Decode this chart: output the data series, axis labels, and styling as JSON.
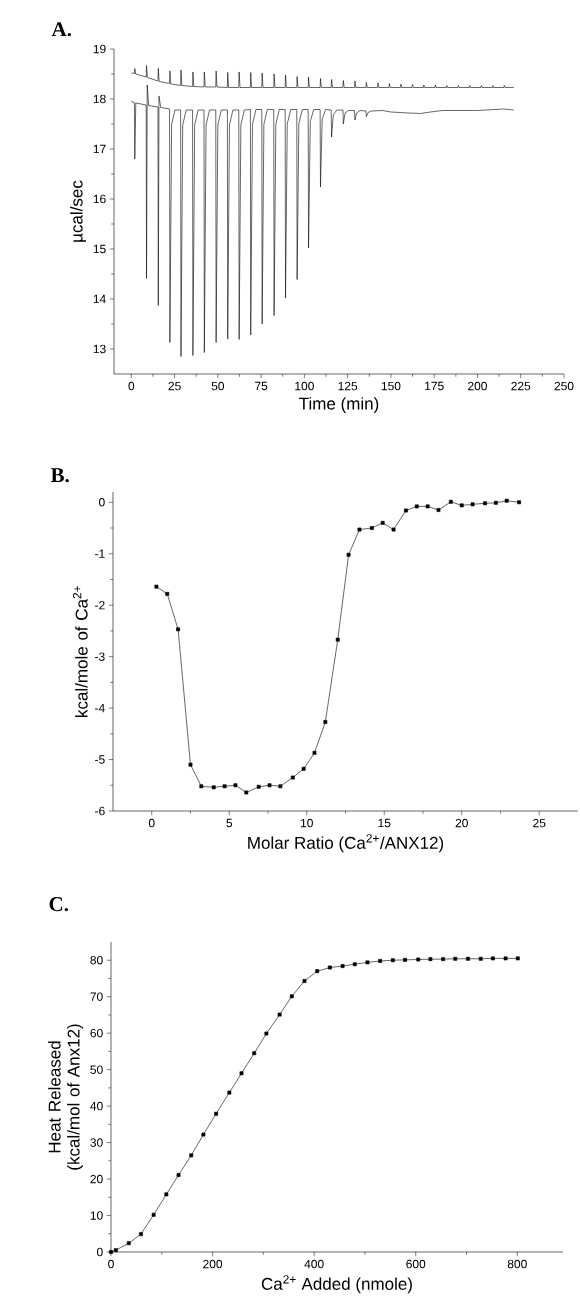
{
  "chart_data": [
    {
      "type": "line",
      "title": "A.",
      "xlabel": "Time (min)",
      "ylabel": "µcal/sec",
      "xlim": [
        -10,
        250
      ],
      "ylim": [
        12.5,
        19
      ],
      "xticks": [
        0,
        25,
        50,
        75,
        100,
        125,
        150,
        175,
        200,
        225,
        250
      ],
      "yticks": [
        13,
        14,
        15,
        16,
        17,
        18,
        19
      ],
      "marker": "none",
      "series": [
        {
          "color": "#000000",
          "x": [
            0,
            1.8,
            2,
            2.5,
            8.6,
            8.8,
            9.3,
            15.4,
            15.6,
            16.1,
            22.1,
            22.3,
            22.8,
            28.5,
            28.7,
            29.2,
            35.4,
            35.6,
            36.1,
            42,
            42.2,
            42.7,
            48.8,
            49,
            49.5,
            55.5,
            55.7,
            56.2,
            62.1,
            62.3,
            62.8,
            68.8,
            69,
            69.5,
            75.4,
            75.6,
            76.1,
            82.3,
            82.5,
            83,
            88.9,
            89.1,
            89.6,
            95.6,
            95.8,
            96.3,
            102.2,
            102.4,
            102.9,
            109.1,
            109.3,
            109.8,
            115.5,
            115.7,
            116.2,
            122.3,
            122.5,
            123,
            129,
            129.2,
            129.7,
            135.6,
            135.8,
            136.3,
            142.3,
            142.5,
            143,
            148.9,
            149.1,
            149.6,
            155.6,
            155.8,
            156.3,
            162.2,
            162.4,
            162.9,
            168.8,
            169,
            169.5,
            175.5,
            175.7,
            176.2,
            182.1,
            182.3,
            182.8,
            188.8,
            189,
            189.5,
            195.4,
            195.6,
            196.1,
            202,
            202.2,
            202.7,
            208.7,
            208.9,
            209.4,
            215.3,
            215.5,
            216,
            221
          ],
          "values": [
            18.52,
            18.51,
            18.61,
            18.5,
            18.44,
            18.67,
            18.43,
            18.36,
            18.61,
            18.35,
            18.31,
            18.56,
            18.3,
            18.27,
            18.58,
            18.27,
            18.25,
            18.54,
            18.25,
            18.24,
            18.54,
            18.24,
            18.24,
            18.56,
            18.24,
            18.23,
            18.53,
            18.23,
            18.23,
            18.54,
            18.23,
            18.23,
            18.53,
            18.23,
            18.23,
            18.52,
            18.23,
            18.23,
            18.5,
            18.23,
            18.23,
            18.48,
            18.23,
            18.23,
            18.45,
            18.23,
            18.23,
            18.44,
            18.23,
            18.23,
            18.41,
            18.23,
            18.23,
            18.39,
            18.23,
            18.23,
            18.37,
            18.23,
            18.23,
            18.36,
            18.23,
            18.23,
            18.33,
            18.23,
            18.23,
            18.32,
            18.23,
            18.23,
            18.31,
            18.23,
            18.23,
            18.3,
            18.23,
            18.23,
            18.29,
            18.23,
            18.23,
            18.28,
            18.23,
            18.23,
            18.28,
            18.23,
            18.23,
            18.27,
            18.23,
            18.23,
            18.27,
            18.23,
            18.23,
            18.27,
            18.23,
            18.23,
            18.27,
            18.23,
            18.23,
            18.27,
            18.23,
            18.23,
            18.27,
            18.23,
            18.23
          ]
        },
        {
          "color": "#000000",
          "x": [
            0,
            1.8,
            2,
            2.6,
            8.6,
            8.8,
            9.2,
            10,
            15.4,
            15.6,
            16,
            17,
            22.1,
            22.3,
            23.3,
            25.3,
            28.5,
            28.7,
            29.7,
            31.7,
            35.4,
            35.6,
            36.6,
            38.6,
            42,
            42.2,
            43.2,
            45.2,
            48.8,
            49,
            50,
            52,
            55.5,
            55.7,
            56.7,
            58.7,
            62.1,
            62.3,
            63.3,
            65.3,
            68.8,
            69,
            70,
            72,
            75.4,
            75.6,
            76.6,
            78.6,
            82.3,
            82.5,
            83.5,
            85.5,
            88.9,
            89.1,
            90.1,
            92.1,
            95.6,
            95.8,
            96.8,
            98.8,
            102.2,
            102.4,
            103.4,
            105.4,
            109.1,
            109.3,
            110.3,
            112.3,
            115.5,
            115.7,
            116.7,
            118.7,
            122.3,
            122.5,
            123.5,
            125.5,
            129,
            129.2,
            130.2,
            132.2,
            135.6,
            135.8,
            136.8,
            138.8,
            145,
            150,
            160,
            167,
            175,
            180,
            200,
            215,
            221
          ],
          "values": [
            17.95,
            17.93,
            16.8,
            17.92,
            17.88,
            14.41,
            18.28,
            17.87,
            17.84,
            13.87,
            18.06,
            17.83,
            17.8,
            13.13,
            17.5,
            17.78,
            17.78,
            12.85,
            17.48,
            17.78,
            17.78,
            12.87,
            17.48,
            17.78,
            17.78,
            12.93,
            17.48,
            17.78,
            17.78,
            13.13,
            17.48,
            17.78,
            17.78,
            13.2,
            17.48,
            17.78,
            17.78,
            13.19,
            17.48,
            17.78,
            17.79,
            13.28,
            17.49,
            17.79,
            17.79,
            13.5,
            17.49,
            17.79,
            17.79,
            13.67,
            17.49,
            17.79,
            17.79,
            14.02,
            17.5,
            17.79,
            17.79,
            14.39,
            17.5,
            17.79,
            17.79,
            15.02,
            17.55,
            17.79,
            17.79,
            16.24,
            17.6,
            17.79,
            17.78,
            17.24,
            17.68,
            17.78,
            17.78,
            17.5,
            17.72,
            17.77,
            17.77,
            17.58,
            17.72,
            17.77,
            17.76,
            17.65,
            17.73,
            17.76,
            17.77,
            17.74,
            17.72,
            17.71,
            17.75,
            17.77,
            17.77,
            17.8,
            17.78
          ]
        }
      ]
    },
    {
      "type": "line",
      "title": "B.",
      "xlabel": "Molar Ratio (Ca$^{2+}$/ANX12)",
      "ylabel": "kcal/mole of Ca$^{2+}$",
      "xlim": [
        -2.5,
        27.5
      ],
      "ylim": [
        -6,
        0.2
      ],
      "xticks": [
        0,
        5,
        10,
        15,
        20,
        25
      ],
      "yticks": [
        -6,
        -5,
        -4,
        -3,
        -2,
        -1,
        0
      ],
      "marker": "square",
      "series": [
        {
          "color": "#000000",
          "x": [
            0.3,
            1.0,
            1.7,
            2.5,
            3.2,
            4.0,
            4.7,
            5.4,
            6.1,
            6.9,
            7.6,
            8.3,
            9.1,
            9.8,
            10.5,
            11.2,
            12.0,
            12.7,
            13.4,
            14.2,
            14.9,
            15.6,
            16.4,
            17.1,
            17.8,
            18.5,
            19.3,
            20.0,
            20.7,
            21.5,
            22.2,
            22.9,
            23.7
          ],
          "values": [
            -1.64,
            -1.78,
            -2.47,
            -5.1,
            -5.52,
            -5.54,
            -5.52,
            -5.5,
            -5.64,
            -5.53,
            -5.5,
            -5.52,
            -5.35,
            -5.18,
            -4.87,
            -4.27,
            -2.67,
            -1.02,
            -0.53,
            -0.5,
            -0.4,
            -0.53,
            -0.16,
            -0.08,
            -0.08,
            -0.15,
            0.01,
            -0.06,
            -0.04,
            -0.02,
            -0.01,
            0.03,
            0
          ]
        }
      ]
    },
    {
      "type": "line",
      "title": "C.",
      "xlabel": "Ca$^{2+}$ Added (nmole)",
      "ylabel": "Heat Released (kcal/mol of Anx12)",
      "xlim": [
        0,
        890
      ],
      "ylim": [
        0,
        85
      ],
      "xticks": [
        0,
        200,
        400,
        600,
        800
      ],
      "yticks": [
        0,
        10,
        20,
        30,
        40,
        50,
        60,
        70,
        80
      ],
      "marker": "square",
      "series": [
        {
          "color": "#000000",
          "x": [
            0,
            9.5,
            35,
            59,
            84,
            109,
            133,
            158,
            182,
            207,
            233,
            257,
            282,
            306,
            332,
            356,
            381,
            406,
            431,
            456,
            480,
            505,
            530,
            555,
            579,
            605,
            629,
            654,
            678,
            703,
            728,
            752,
            777,
            801
          ],
          "values": [
            0,
            0.5,
            2.4,
            4.9,
            10.2,
            15.8,
            21.1,
            26.5,
            32.2,
            37.9,
            43.7,
            49.0,
            54.5,
            59.9,
            65.1,
            70.1,
            74.3,
            77.0,
            78.0,
            78.4,
            78.9,
            79.4,
            79.8,
            80.0,
            80.1,
            80.2,
            80.3,
            80.3,
            80.4,
            80.4,
            80.4,
            80.5,
            80.5,
            80.5
          ]
        }
      ]
    }
  ]
}
